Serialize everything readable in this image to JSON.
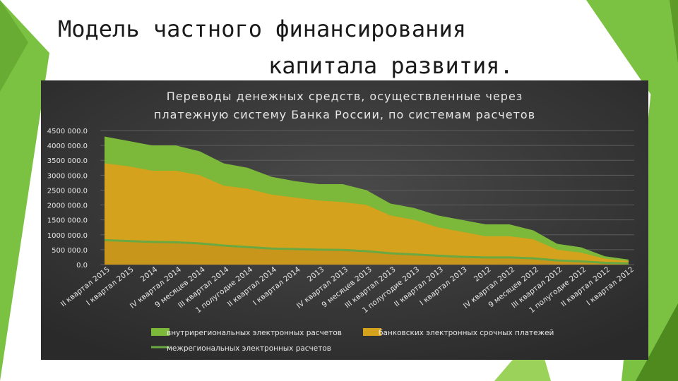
{
  "slide": {
    "title_line1": "Модель частного финансирования",
    "title_line2": "капитала развития.",
    "accent_color": "#7cc242",
    "dark_accent_color": "#4f8a1e"
  },
  "chart_data": {
    "type": "area",
    "title_line1": "Переводы денежных средств, осуществленные через",
    "title_line2": "платежную систему Банка России, по системам расчетов",
    "x": [
      "II квартал 2015",
      "I квартал 2015",
      "2014",
      "IV квартал 2014",
      "9 месяцев 2014",
      "III квартал 2014",
      "1 полугодие 2014",
      "II квартал 2014",
      "I квартал 2014",
      "2013",
      "IV квартал 2013",
      "9 месяцев 2013",
      "III квартал 2013",
      "1 полугодие 2013",
      "II квартал 2013",
      "I квартал 2013",
      "2012",
      "IV квартал 2012",
      "9 месяцев 2012",
      "III квартал 2012",
      "1 полугодие 2012",
      "II квартал 2012",
      "I квартал 2012"
    ],
    "ylim": [
      0,
      4500000
    ],
    "yticks": [
      "4500 000.0",
      "4000 000.0",
      "3500 000.0",
      "3000 000.0",
      "2500 000.0",
      "2000 000.0",
      "1500 000.0",
      "1000 000.0",
      "500 000.0",
      "0.0"
    ],
    "ytick_values": [
      4500000,
      4000000,
      3500000,
      3000000,
      2500000,
      2000000,
      1500000,
      1000000,
      500000,
      0
    ],
    "grid": true,
    "legend_position": "bottom",
    "series": [
      {
        "name": "внутрирегиональных электронных расчетов",
        "color": "#7cb83a",
        "values": [
          4300000,
          4150000,
          4000000,
          4000000,
          3800000,
          3400000,
          3250000,
          2950000,
          2800000,
          2700000,
          2700000,
          2500000,
          2050000,
          1900000,
          1650000,
          1500000,
          1350000,
          1350000,
          1150000,
          700000,
          580000,
          280000,
          170000
        ]
      },
      {
        "name": "банковских электронных срочных платежей",
        "color": "#d4a21c",
        "values": [
          3400000,
          3300000,
          3150000,
          3150000,
          3000000,
          2650000,
          2550000,
          2350000,
          2250000,
          2150000,
          2100000,
          2000000,
          1650000,
          1500000,
          1250000,
          1100000,
          950000,
          950000,
          850000,
          500000,
          400000,
          200000,
          120000
        ]
      },
      {
        "name": "межрегиональных электронных расчетов",
        "color": "#6aa842",
        "values": [
          820000,
          790000,
          760000,
          750000,
          710000,
          640000,
          590000,
          540000,
          520000,
          500000,
          490000,
          450000,
          380000,
          340000,
          300000,
          260000,
          240000,
          240000,
          210000,
          140000,
          110000,
          60000,
          40000
        ]
      }
    ]
  }
}
